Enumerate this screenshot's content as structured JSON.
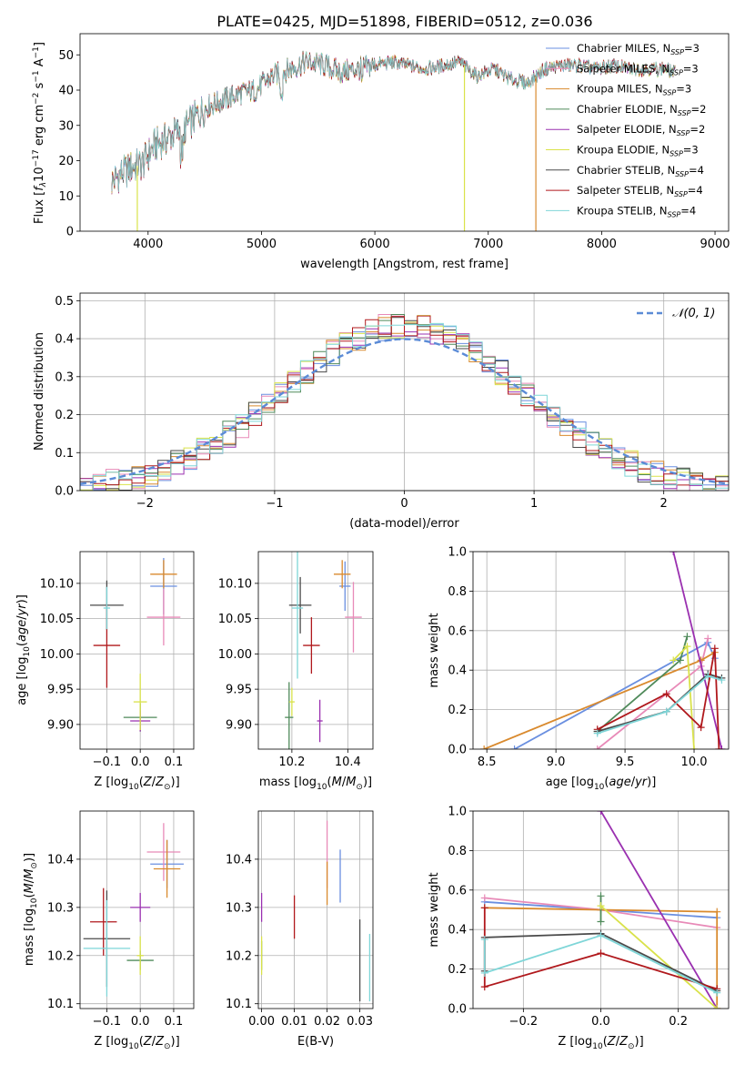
{
  "title": "PLATE=0425, MJD=51898, FIBERID=0512, z=0.036",
  "colors": {
    "chabrier_miles": "#6a8fe0",
    "salpeter_miles": "#e88ab8",
    "kroupa_miles": "#d98a2e",
    "chabrier_elodie": "#4f8a5a",
    "salpeter_elodie": "#9a30b0",
    "kroupa_elodie": "#d9e24a",
    "chabrier_stelib": "#4a4a4a",
    "salpeter_stelib": "#b0181c",
    "kroupa_stelib": "#7fd6d8",
    "normal": "#5b8bd6"
  },
  "chart_data": [
    {
      "id": "spectrum",
      "type": "line",
      "xlabel": "wavelength [Angstrom, rest frame]",
      "ylabel": "Flux [f_λ 10^-17 erg cm^-2 s^-1 A^-1]",
      "xlim": [
        3400,
        9120
      ],
      "ylim": [
        0,
        56
      ],
      "xticks": [
        4000,
        5000,
        6000,
        7000,
        8000,
        9000
      ],
      "yticks": [
        0,
        10,
        20,
        30,
        40,
        50
      ],
      "legend_position": "top-right",
      "series": [
        {
          "name": "Chabrier MILES, N_SSP=3",
          "color_key": "chabrier_miles"
        },
        {
          "name": "Salpeter MILES, N_SSP=3",
          "color_key": "salpeter_miles"
        },
        {
          "name": "Kroupa MILES, N_SSP=3",
          "color_key": "kroupa_miles"
        },
        {
          "name": "Chabrier ELODIE, N_SSP=2",
          "color_key": "chabrier_elodie"
        },
        {
          "name": "Salpeter ELODIE, N_SSP=2",
          "color_key": "salpeter_elodie"
        },
        {
          "name": "Kroupa ELODIE, N_SSP=3",
          "color_key": "kroupa_elodie"
        },
        {
          "name": "Chabrier STELIB, N_SSP=4",
          "color_key": "chabrier_stelib"
        },
        {
          "name": "Salpeter STELIB, N_SSP=4",
          "color_key": "salpeter_stelib"
        },
        {
          "name": "Kroupa STELIB, N_SSP=4",
          "color_key": "kroupa_stelib"
        }
      ],
      "envelope": {
        "x": [
          3680,
          3750,
          3850,
          3950,
          4050,
          4150,
          4250,
          4350,
          4500,
          4650,
          4800,
          4950,
          5100,
          5250,
          5400,
          5550,
          5700,
          5850,
          6000,
          6150,
          6300,
          6450,
          6600,
          6750,
          6900,
          7050,
          7200,
          7350,
          7500,
          7650,
          7800,
          7950,
          8100,
          8250,
          8400,
          8550,
          8650
        ],
        "y": [
          14,
          16,
          18,
          19,
          24,
          26,
          28,
          30,
          35,
          37,
          39,
          40,
          44,
          46,
          48,
          47,
          45,
          46,
          47,
          48,
          47,
          46,
          47,
          48,
          44,
          46,
          43,
          42,
          46,
          47,
          47,
          46,
          47,
          46,
          46,
          46,
          45
        ]
      },
      "spikes": [
        {
          "x": 3905,
          "y_min": 0,
          "color_key": "kroupa_elodie"
        },
        {
          "x": 6790,
          "y_min": 0,
          "color_key": "kroupa_elodie"
        },
        {
          "x": 7420,
          "y_min": 0,
          "color_key": "kroupa_miles"
        }
      ]
    },
    {
      "id": "residuals",
      "type": "line",
      "xlabel": "(data-model)/error",
      "ylabel": "Normed distribution",
      "xlim": [
        -2.5,
        2.5
      ],
      "ylim": [
        0,
        0.52
      ],
      "xticks": [
        -2,
        -1,
        0,
        1,
        2
      ],
      "yticks": [
        0.0,
        0.1,
        0.2,
        0.3,
        0.4,
        0.5
      ],
      "grid": true,
      "legend": "𝒩(0, 1)",
      "legend_position": "top-right",
      "bin_width": 0.1
    },
    {
      "id": "age_vs_Z",
      "type": "scatter",
      "xlabel": "Z [log10(Z/Z⊙)]",
      "ylabel": "age [log10(age/yr)]",
      "xlim": [
        -0.18,
        0.16
      ],
      "ylim": [
        9.865,
        10.145
      ],
      "xticks": [
        -0.1,
        0.0,
        0.1
      ],
      "yticks": [
        9.9,
        9.95,
        10.0,
        10.05,
        10.1
      ],
      "grid": true,
      "points": [
        {
          "key": "chabrier_miles",
          "x": 0.07,
          "y": 10.096,
          "xerr": 0.04,
          "yerr": 0.04
        },
        {
          "key": "salpeter_miles",
          "x": 0.07,
          "y": 10.052,
          "xerr": 0.05,
          "yerr": 0.04
        },
        {
          "key": "kroupa_miles",
          "x": 0.07,
          "y": 10.113,
          "xerr": 0.04,
          "yerr": 0.02
        },
        {
          "key": "chabrier_elodie",
          "x": 0.0,
          "y": 9.91,
          "xerr": 0.05,
          "yerr": 0.02
        },
        {
          "key": "salpeter_elodie",
          "x": 0.0,
          "y": 9.905,
          "xerr": 0.03,
          "yerr": 0.015
        },
        {
          "key": "kroupa_elodie",
          "x": 0.0,
          "y": 9.932,
          "xerr": 0.02,
          "yerr": 0.04
        },
        {
          "key": "chabrier_stelib",
          "x": -0.1,
          "y": 10.069,
          "xerr": 0.05,
          "yerr": 0.035
        },
        {
          "key": "salpeter_stelib",
          "x": -0.1,
          "y": 10.012,
          "xerr": 0.04,
          "yerr": 0.06
        },
        {
          "key": "kroupa_stelib",
          "x": -0.1,
          "y": 10.065,
          "xerr": 0.01,
          "yerr": 0.03
        }
      ]
    },
    {
      "id": "age_vs_mass",
      "type": "scatter",
      "xlabel": "mass [log10(M/M⊙)]",
      "ylabel": "",
      "xlim": [
        10.08,
        10.49
      ],
      "ylim": [
        9.865,
        10.145
      ],
      "xticks": [
        10.2,
        10.4
      ],
      "yticks": [
        9.9,
        9.95,
        10.0,
        10.05,
        10.1
      ],
      "grid": true,
      "points": [
        {
          "key": "chabrier_miles",
          "x": 10.39,
          "y": 10.096,
          "xerr": 0.02,
          "yerr": 0.035
        },
        {
          "key": "salpeter_miles",
          "x": 10.42,
          "y": 10.052,
          "xerr": 0.03,
          "yerr": 0.05
        },
        {
          "key": "kroupa_miles",
          "x": 10.38,
          "y": 10.113,
          "xerr": 0.03,
          "yerr": 0.02
        },
        {
          "key": "chabrier_elodie",
          "x": 10.19,
          "y": 9.91,
          "xerr": 0.015,
          "yerr": 0.05
        },
        {
          "key": "salpeter_elodie",
          "x": 10.3,
          "y": 9.905,
          "xerr": 0.01,
          "yerr": 0.03
        },
        {
          "key": "kroupa_elodie",
          "x": 10.2,
          "y": 9.932,
          "xerr": 0.01,
          "yerr": 0.02
        },
        {
          "key": "chabrier_stelib",
          "x": 10.23,
          "y": 10.069,
          "xerr": 0.04,
          "yerr": 0.04
        },
        {
          "key": "salpeter_stelib",
          "x": 10.27,
          "y": 10.012,
          "xerr": 0.03,
          "yerr": 0.04
        },
        {
          "key": "kroupa_stelib",
          "x": 10.22,
          "y": 10.065,
          "xerr": 0.02,
          "yerr": 0.1
        }
      ]
    },
    {
      "id": "weight_vs_age",
      "type": "line",
      "xlabel": "age [log10(age/yr)]",
      "ylabel": "mass weight",
      "xlim": [
        8.4,
        10.25
      ],
      "ylim": [
        0,
        1.0
      ],
      "xticks": [
        8.5,
        9.0,
        9.5,
        10.0
      ],
      "yticks": [
        0.0,
        0.2,
        0.4,
        0.6,
        0.8,
        1.0
      ],
      "grid": true,
      "series": [
        {
          "key": "chabrier_miles",
          "x": [
            8.7,
            10.1,
            10.15
          ],
          "y": [
            0.0,
            0.54,
            0.46
          ]
        },
        {
          "key": "salpeter_miles",
          "x": [
            9.3,
            10.05,
            10.1
          ],
          "y": [
            0.0,
            0.42,
            0.56
          ]
        },
        {
          "key": "kroupa_miles",
          "x": [
            8.48,
            10.05,
            10.15
          ],
          "y": [
            0.0,
            0.45,
            0.49
          ]
        },
        {
          "key": "chabrier_elodie",
          "x": [
            9.3,
            9.9,
            9.95
          ],
          "y": [
            0.09,
            0.45,
            0.57
          ]
        },
        {
          "key": "salpeter_elodie",
          "x": [
            9.85,
            10.2
          ],
          "y": [
            1.0,
            0.0
          ]
        },
        {
          "key": "kroupa_elodie",
          "x": [
            9.85,
            9.95,
            10.0
          ],
          "y": [
            0.45,
            0.52,
            0.0
          ]
        },
        {
          "key": "chabrier_stelib",
          "x": [
            9.3,
            9.8,
            10.1,
            10.2
          ],
          "y": [
            0.09,
            0.19,
            0.38,
            0.36
          ]
        },
        {
          "key": "salpeter_stelib",
          "x": [
            9.3,
            9.8,
            10.05,
            10.15,
            10.18
          ],
          "y": [
            0.1,
            0.28,
            0.11,
            0.51,
            0.0
          ]
        },
        {
          "key": "kroupa_stelib",
          "x": [
            9.3,
            9.8,
            10.1,
            10.2
          ],
          "y": [
            0.08,
            0.19,
            0.37,
            0.35
          ]
        }
      ]
    },
    {
      "id": "mass_vs_Z",
      "type": "scatter",
      "xlabel": "Z [log10(Z/Z⊙)]",
      "ylabel": "mass [log10(M/M⊙)]",
      "xlim": [
        -0.18,
        0.16
      ],
      "ylim": [
        10.09,
        10.5
      ],
      "xticks": [
        -0.1,
        0.0,
        0.1
      ],
      "yticks": [
        10.1,
        10.2,
        10.3,
        10.4
      ],
      "grid": true,
      "points": [
        {
          "key": "chabrier_miles",
          "x": 0.08,
          "y": 10.39,
          "xerr": 0.05,
          "yerr": 0.05
        },
        {
          "key": "salpeter_miles",
          "x": 0.07,
          "y": 10.415,
          "xerr": 0.05,
          "yerr": 0.06
        },
        {
          "key": "kroupa_miles",
          "x": 0.08,
          "y": 10.38,
          "xerr": 0.04,
          "yerr": 0.06
        },
        {
          "key": "chabrier_elodie",
          "x": 0.0,
          "y": 10.19,
          "xerr": 0.04,
          "yerr": 0.02
        },
        {
          "key": "salpeter_elodie",
          "x": 0.0,
          "y": 10.3,
          "xerr": 0.03,
          "yerr": 0.03
        },
        {
          "key": "kroupa_elodie",
          "x": 0.0,
          "y": 10.2,
          "xerr": 0.01,
          "yerr": 0.04
        },
        {
          "key": "chabrier_stelib",
          "x": -0.1,
          "y": 10.235,
          "xerr": 0.07,
          "yerr": 0.1
        },
        {
          "key": "salpeter_stelib",
          "x": -0.11,
          "y": 10.27,
          "xerr": 0.04,
          "yerr": 0.07
        },
        {
          "key": "kroupa_stelib",
          "x": -0.1,
          "y": 10.215,
          "xerr": 0.07,
          "yerr": 0.1
        }
      ]
    },
    {
      "id": "mass_vs_EBV",
      "type": "scatter",
      "xlabel": "E(B-V)",
      "ylabel": "",
      "xlim": [
        -0.001,
        0.034
      ],
      "ylim": [
        10.09,
        10.5
      ],
      "xticks": [
        0.0,
        0.01,
        0.02,
        0.03
      ],
      "yticks": [
        10.1,
        10.2,
        10.3,
        10.4
      ],
      "grid": true,
      "points": [
        {
          "key": "chabrier_miles",
          "x": 0.024,
          "y": 10.365,
          "xerr": 0,
          "yerr": 0.055
        },
        {
          "key": "salpeter_miles",
          "x": 0.02,
          "y": 10.41,
          "xerr": 0,
          "yerr": 0.07
        },
        {
          "key": "kroupa_miles",
          "x": 0.02,
          "y": 10.35,
          "xerr": 0,
          "yerr": 0.045
        },
        {
          "key": "chabrier_elodie",
          "x": 0.0,
          "y": 10.2,
          "xerr": 0,
          "yerr": 0.03
        },
        {
          "key": "salpeter_elodie",
          "x": 0.0,
          "y": 10.3,
          "xerr": 0,
          "yerr": 0.03
        },
        {
          "key": "kroupa_elodie",
          "x": 0.0,
          "y": 10.2,
          "xerr": 0,
          "yerr": 0.04
        },
        {
          "key": "chabrier_stelib",
          "x": 0.03,
          "y": 10.19,
          "xerr": 0,
          "yerr": 0.085
        },
        {
          "key": "salpeter_stelib",
          "x": 0.01,
          "y": 10.28,
          "xerr": 0,
          "yerr": 0.045
        },
        {
          "key": "kroupa_stelib",
          "x": 0.033,
          "y": 10.175,
          "xerr": 0,
          "yerr": 0.07
        }
      ]
    },
    {
      "id": "weight_vs_Z",
      "type": "line",
      "xlabel": "Z [log10(Z/Z⊙)]",
      "ylabel": "mass weight",
      "xlim": [
        -0.33,
        0.33
      ],
      "ylim": [
        0,
        1.0
      ],
      "xticks": [
        -0.2,
        0.0,
        0.2
      ],
      "yticks": [
        0.0,
        0.2,
        0.4,
        0.6,
        0.8,
        1.0
      ],
      "grid": true,
      "series": [
        {
          "key": "chabrier_miles",
          "x": [
            -0.3,
            0.0,
            0.3
          ],
          "y": [
            0.54,
            0.5,
            0.46
          ]
        },
        {
          "key": "salpeter_miles",
          "x": [
            -0.3,
            0.0,
            0.3
          ],
          "y": [
            0.56,
            0.5,
            0.41
          ]
        },
        {
          "key": "kroupa_miles",
          "x": [
            -0.3,
            0.0,
            0.3,
            0.3
          ],
          "y": [
            0.51,
            0.5,
            0.49,
            0.0
          ]
        },
        {
          "key": "chabrier_elodie",
          "x": [
            0.0,
            0.0
          ],
          "y": [
            0.44,
            0.57
          ]
        },
        {
          "key": "salpeter_elodie",
          "x": [
            0.0,
            0.3
          ],
          "y": [
            1.0,
            0.0
          ]
        },
        {
          "key": "kroupa_elodie",
          "x": [
            0.0,
            0.3
          ],
          "y": [
            0.52,
            0.0
          ]
        },
        {
          "key": "chabrier_stelib",
          "x": [
            -0.3,
            -0.3,
            0.0,
            0.3
          ],
          "y": [
            0.19,
            0.36,
            0.38,
            0.09
          ]
        },
        {
          "key": "salpeter_stelib",
          "x": [
            -0.3,
            -0.3,
            0.0,
            0.3
          ],
          "y": [
            0.51,
            0.11,
            0.28,
            0.1
          ]
        },
        {
          "key": "kroupa_stelib",
          "x": [
            -0.3,
            -0.3,
            0.0,
            0.3
          ],
          "y": [
            0.35,
            0.18,
            0.37,
            0.08
          ]
        }
      ]
    }
  ]
}
